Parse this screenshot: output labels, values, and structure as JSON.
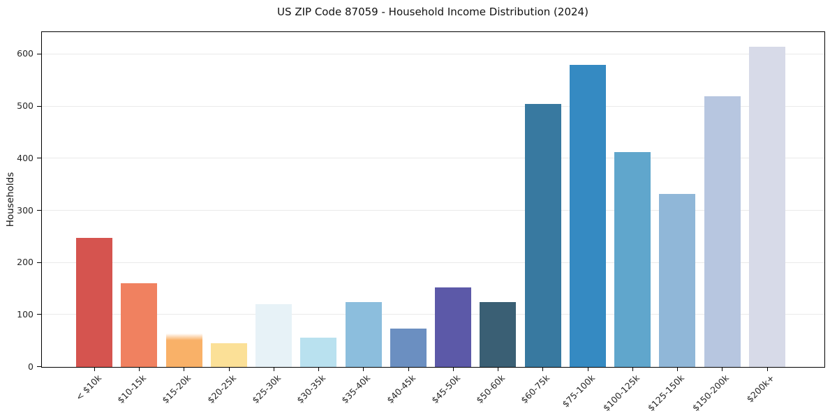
{
  "chart_data": {
    "type": "bar",
    "title": "US ZIP Code 87059 - Household Income Distribution (2024)",
    "xlabel": "",
    "ylabel": "Households",
    "categories": [
      "< $10k",
      "$10-15k",
      "$15-20k",
      "$20-25k",
      "$25-30k",
      "$30-35k",
      "$35-40k",
      "$40-45k",
      "$45-50k",
      "$50-60k",
      "$60-75k",
      "$75-100k",
      "$100-125k",
      "$125-150k",
      "$150-200k",
      "$200k+"
    ],
    "values": [
      248,
      160,
      64,
      45,
      120,
      56,
      125,
      74,
      152,
      124,
      505,
      580,
      412,
      332,
      519,
      614
    ],
    "bar_colors": [
      "#d5544f",
      "#f08160",
      "#f9b168",
      "#fbe097",
      "#e7f2f7",
      "#b9e1ef",
      "#8cbedd",
      "#6b8fc1",
      "#5c59a8",
      "#3a5f74",
      "#3879a0",
      "#358ac2",
      "#60a6cc",
      "#90b7d8",
      "#b7c6e0",
      "#d7dae8"
    ],
    "yticks": [
      0,
      100,
      200,
      300,
      400,
      500,
      600
    ],
    "ylim": [
      0,
      645
    ],
    "grid": "horizontal",
    "gridline_color": "#eaeaea",
    "spine_color": "#000000",
    "background": "#ffffff",
    "legend": "none",
    "x_tick_label_rotation_deg": 45
  }
}
